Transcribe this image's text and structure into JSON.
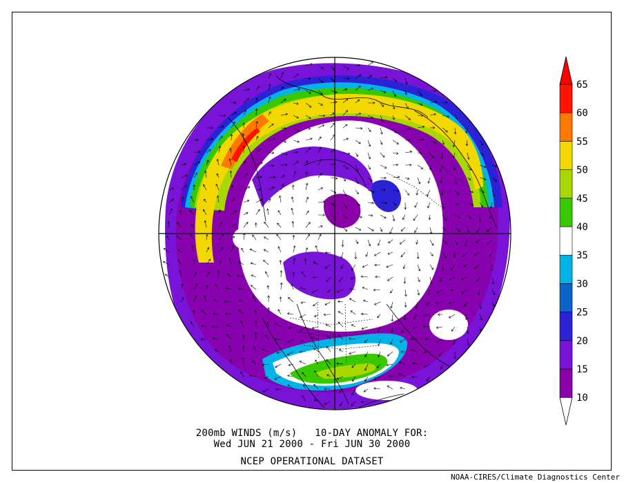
{
  "title": {
    "line1": "200mb WINDS (m/s)   10-DAY ANOMALY FOR:",
    "line2": "Wed JUN 21 2000 - Fri JUN 30 2000",
    "line3": "NCEP OPERATIONAL DATASET"
  },
  "credit": "NOAA-CIRES/Climate Diagnostics Center",
  "projection": "north-polar-stereographic",
  "colorbar": {
    "levels": [
      "10",
      "15",
      "20",
      "25",
      "30",
      "35",
      "40",
      "45",
      "50",
      "55",
      "60",
      "65"
    ],
    "colors": [
      "#ffffff",
      "#8b00a8",
      "#7a13d8",
      "#2b22d6",
      "#0a64c8",
      "#00b4e8",
      "#ffffff",
      "#38c800",
      "#a8d800",
      "#f2d800",
      "#ff7800",
      "#ff1400",
      "#ff0000"
    ]
  },
  "features": {
    "wind_vectors": "shown",
    "coastlines": "shown",
    "political_boundaries": "shown",
    "meridian_cross": "shown"
  }
}
